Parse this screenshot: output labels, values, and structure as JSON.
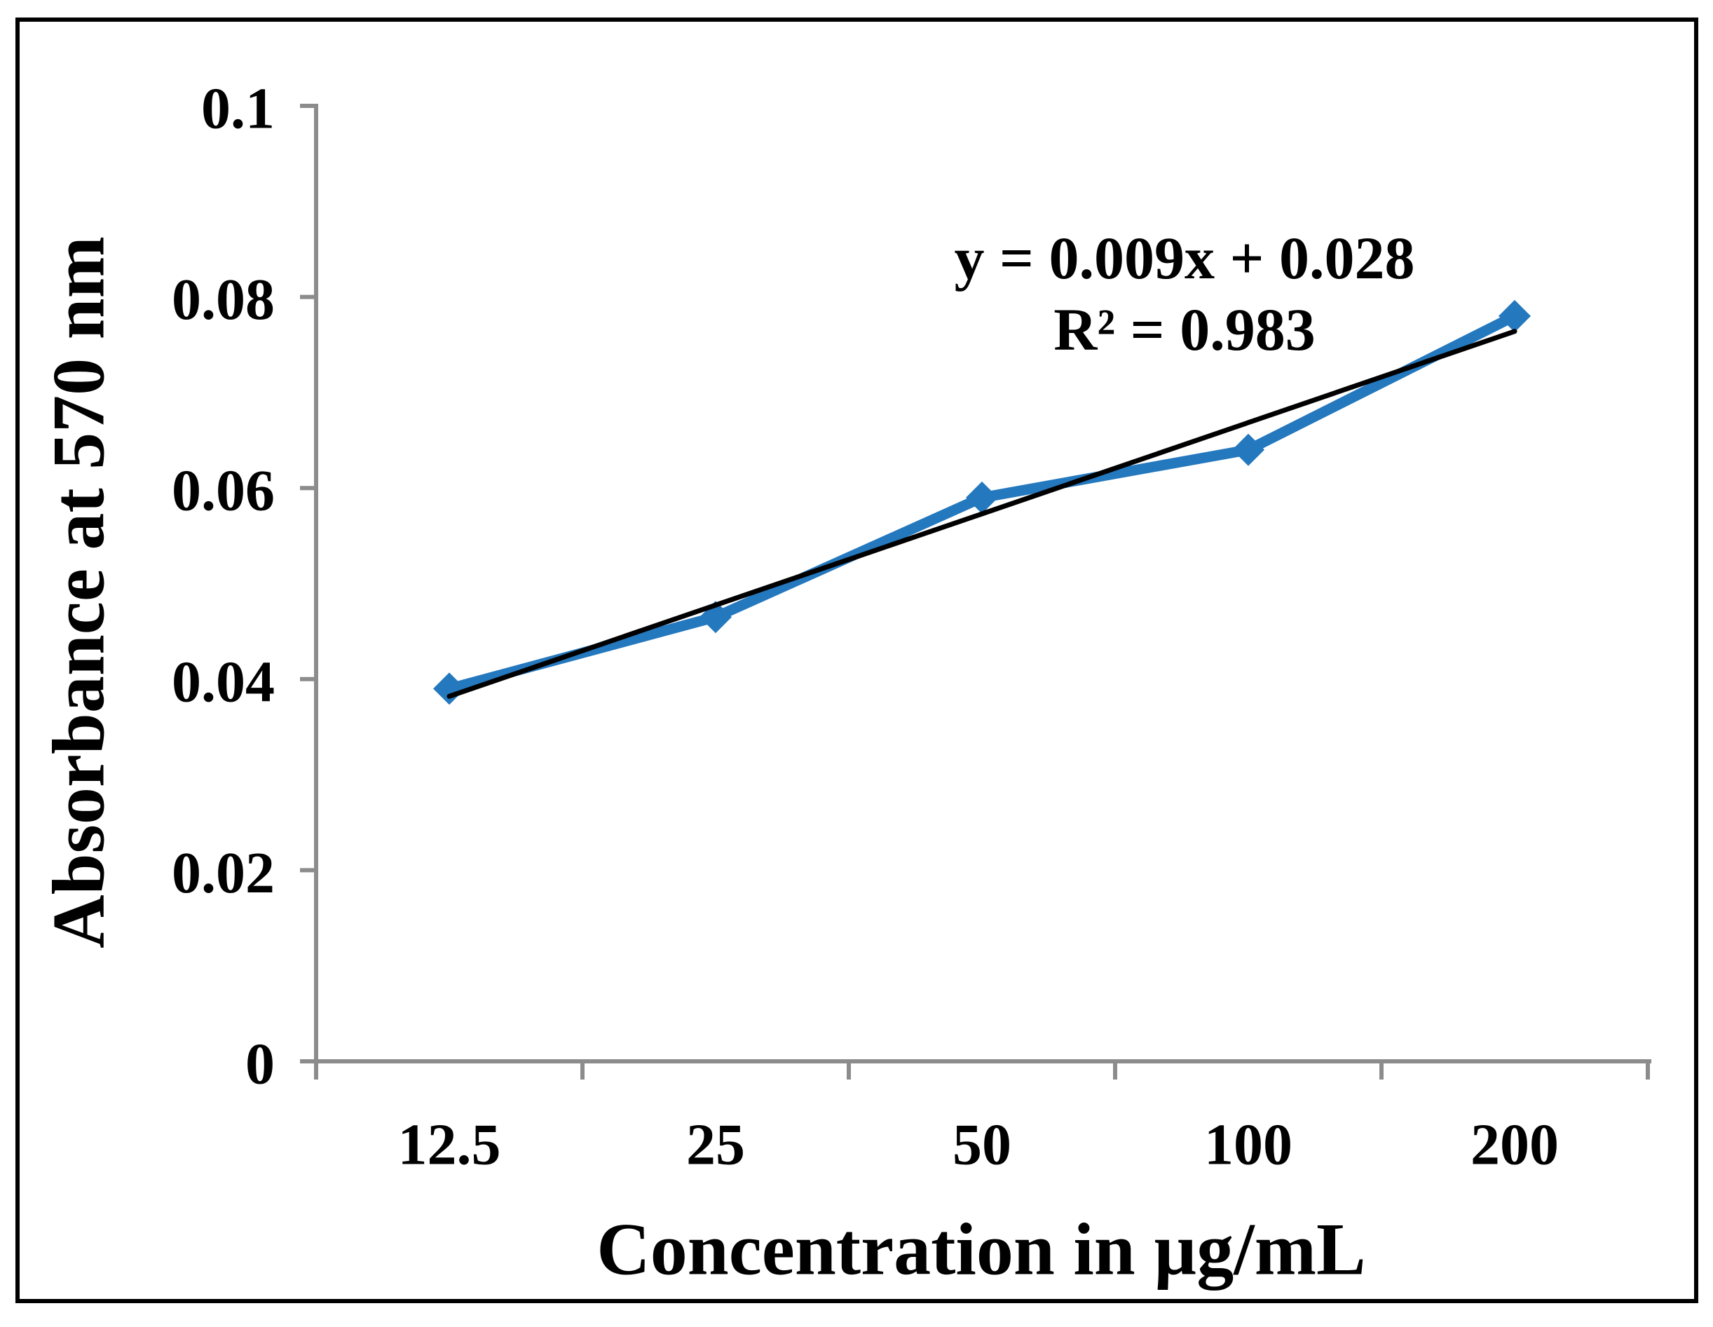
{
  "chart_data": {
    "type": "line",
    "title": "",
    "categories": [
      "12.5",
      "25",
      "50",
      "100",
      "200"
    ],
    "series": [
      {
        "name": "Absorbance at 570 nm",
        "values": [
          0.039,
          0.0465,
          0.059,
          0.064,
          0.078
        ]
      }
    ],
    "trendline": {
      "equation_label": "y = 0.009x + 0.028",
      "r_squared_label": "R² = 0.983",
      "slope_per_category_index": 0.009,
      "intercept": 0.028,
      "r_squared": 0.983
    },
    "xlabel": "Concentration in µg/mL",
    "ylabel": "Absorbance at 570 nm",
    "y_tick_labels": [
      "0",
      "0.02",
      "0.04",
      "0.06",
      "0.08",
      "0.1"
    ],
    "y_tick_values": [
      0,
      0.02,
      0.04,
      0.06,
      0.08,
      0.1
    ],
    "ylim": [
      0,
      0.1
    ],
    "grid": false,
    "legend_position": "none",
    "marker_shape": "diamond",
    "colors": {
      "series": "#2478BE",
      "trendline": "#000000",
      "axis": "#8C8C8C",
      "text": "#000000",
      "background": "#FFFFFF",
      "figure_border": "#000000"
    }
  }
}
